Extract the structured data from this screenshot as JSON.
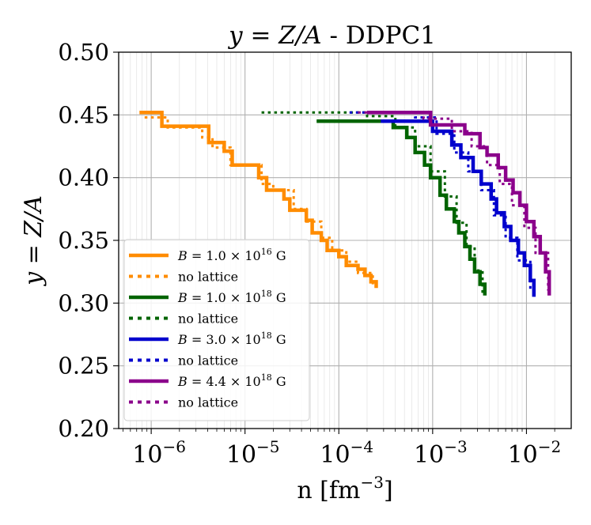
{
  "chart_data": {
    "type": "line",
    "title": {
      "main": "y = Z/A",
      "suffix": " - DDPC1"
    },
    "xlabel": {
      "main": "n [fm",
      "sup": "−3",
      "close": "]"
    },
    "ylabel": "y = Z/A",
    "xscale": "log",
    "xlim": [
      4.5e-07,
      0.03
    ],
    "ylim": [
      0.2,
      0.5
    ],
    "x_ticks": [
      {
        "value": 1e-06,
        "base": "10",
        "exp": "−6"
      },
      {
        "value": 1e-05,
        "base": "10",
        "exp": "−5"
      },
      {
        "value": 0.0001,
        "base": "10",
        "exp": "−4"
      },
      {
        "value": 0.001,
        "base": "10",
        "exp": "−3"
      },
      {
        "value": 0.01,
        "base": "10",
        "exp": "−2"
      }
    ],
    "y_ticks": [
      {
        "value": 0.2,
        "label": "0.20"
      },
      {
        "value": 0.25,
        "label": "0.25"
      },
      {
        "value": 0.3,
        "label": "0.30"
      },
      {
        "value": 0.35,
        "label": "0.35"
      },
      {
        "value": 0.4,
        "label": "0.40"
      },
      {
        "value": 0.45,
        "label": "0.45"
      },
      {
        "value": 0.5,
        "label": "0.50"
      }
    ],
    "grid": true,
    "legend_position": "lower-left",
    "series": [
      {
        "name": "B = 1.0 × 10^16 G",
        "legend": {
          "b": "B",
          "mid": " = 1.0 × 10",
          "exp": "16",
          "unit": " G"
        },
        "color": "#FF8C00",
        "style": "solid",
        "x": [
          7.5e-07,
          1.1e-06,
          1.3e-06,
          3.6e-06,
          4.1e-06,
          6e-06,
          7.3e-06,
          1.4e-05,
          1.7e-05,
          2.6e-05,
          3e-05,
          4.5e-05,
          5.2e-05,
          6.5e-05,
          7.5e-05,
          0.0001,
          0.00012,
          0.00016,
          0.00019,
          0.00022,
          0.00025
        ],
        "y": [
          0.452,
          0.452,
          0.441,
          0.441,
          0.428,
          0.421,
          0.41,
          0.4,
          0.39,
          0.383,
          0.374,
          0.366,
          0.356,
          0.35,
          0.342,
          0.337,
          0.33,
          0.327,
          0.322,
          0.317,
          0.312
        ]
      },
      {
        "name": "no lattice",
        "legend": {
          "text": "no lattice"
        },
        "color": "#FF8C00",
        "style": "dotted",
        "x": [
          8.5e-07,
          1.5e-06,
          3.5e-06,
          4.5e-06,
          7e-06,
          1.5e-05,
          2e-05,
          3.3e-05,
          4.5e-05,
          6.5e-05,
          8.5e-05,
          0.00012,
          0.00016,
          0.00023
        ],
        "y": [
          0.448,
          0.44,
          0.432,
          0.424,
          0.41,
          0.395,
          0.39,
          0.375,
          0.365,
          0.352,
          0.342,
          0.333,
          0.324,
          0.314
        ]
      },
      {
        "name": "B = 1.0 × 10^18 G",
        "legend": {
          "b": "B",
          "mid": " = 1.0 × 10",
          "exp": "18",
          "unit": " G"
        },
        "color": "#006400",
        "style": "solid",
        "x": [
          5.8e-05,
          0.00025,
          0.00038,
          0.00053,
          0.00065,
          0.00082,
          0.00095,
          0.0012,
          0.0014,
          0.0017,
          0.0019,
          0.0022,
          0.0025,
          0.0028,
          0.0032,
          0.0036
        ],
        "y": [
          0.445,
          0.445,
          0.44,
          0.432,
          0.42,
          0.41,
          0.4,
          0.386,
          0.375,
          0.365,
          0.356,
          0.345,
          0.335,
          0.325,
          0.315,
          0.306
        ]
      },
      {
        "name": "no lattice",
        "legend": {
          "text": "no lattice"
        },
        "color": "#006400",
        "style": "dotted",
        "x": [
          1.5e-05,
          0.0002,
          0.0004,
          0.00065,
          0.00095,
          0.00135,
          0.0018,
          0.0023,
          0.0028,
          0.0034
        ],
        "y": [
          0.452,
          0.449,
          0.44,
          0.425,
          0.405,
          0.385,
          0.364,
          0.345,
          0.326,
          0.308
        ]
      },
      {
        "name": "B = 3.0 × 10^18 G",
        "legend": {
          "b": "B",
          "mid": " = 3.0 × 10",
          "exp": "18",
          "unit": " G"
        },
        "color": "#0000CD",
        "style": "solid",
        "x": [
          0.00028,
          0.00072,
          0.001,
          0.0016,
          0.002,
          0.0027,
          0.0033,
          0.0042,
          0.0048,
          0.0058,
          0.0068,
          0.0082,
          0.0095,
          0.011,
          0.012
        ],
        "y": [
          0.445,
          0.445,
          0.437,
          0.426,
          0.416,
          0.405,
          0.395,
          0.383,
          0.372,
          0.361,
          0.35,
          0.34,
          0.33,
          0.318,
          0.305
        ]
      },
      {
        "name": "no lattice",
        "legend": {
          "text": "no lattice"
        },
        "color": "#0000CD",
        "style": "dotted",
        "x": [
          0.00013,
          0.00065,
          0.0011,
          0.0017,
          0.0024,
          0.0033,
          0.0045,
          0.006,
          0.008,
          0.011
        ],
        "y": [
          0.452,
          0.448,
          0.435,
          0.42,
          0.405,
          0.39,
          0.37,
          0.352,
          0.334,
          0.31
        ]
      },
      {
        "name": "B = 4.4 × 10^18 G",
        "legend": {
          "b": "B",
          "mid": " = 4.4 × 10",
          "exp": "18",
          "unit": " G"
        },
        "color": "#8B008B",
        "style": "solid",
        "x": [
          0.0002,
          0.0006,
          0.00095,
          0.0017,
          0.0022,
          0.0032,
          0.0038,
          0.005,
          0.006,
          0.0072,
          0.0085,
          0.01,
          0.012,
          0.014,
          0.016,
          0.0175
        ],
        "y": [
          0.452,
          0.452,
          0.442,
          0.442,
          0.435,
          0.424,
          0.418,
          0.408,
          0.398,
          0.388,
          0.378,
          0.365,
          0.353,
          0.34,
          0.325,
          0.306
        ]
      },
      {
        "name": "no lattice",
        "legend": {
          "text": "no lattice"
        },
        "color": "#8B008B",
        "style": "dotted",
        "x": [
          0.00016,
          0.0008,
          0.0016,
          0.0026,
          0.0038,
          0.0052,
          0.007,
          0.0095,
          0.0125,
          0.017
        ],
        "y": [
          0.452,
          0.447,
          0.437,
          0.425,
          0.41,
          0.395,
          0.378,
          0.36,
          0.34,
          0.31
        ]
      }
    ]
  }
}
